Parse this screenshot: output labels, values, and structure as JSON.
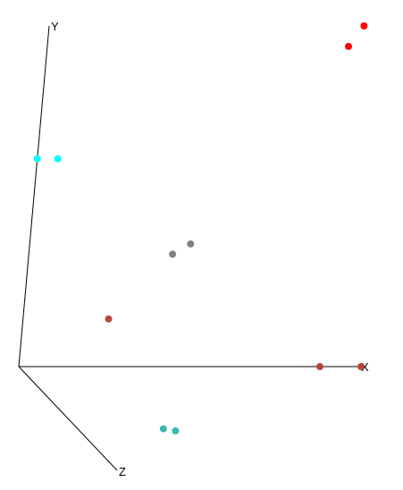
{
  "chart_data": {
    "type": "scatter",
    "projection": "3d",
    "axes": {
      "x": {
        "label": "X"
      },
      "y": {
        "label": "Y"
      },
      "z": {
        "label": "Z"
      }
    },
    "grid": false,
    "legend": "none",
    "points": [
      {
        "x": 0.92,
        "y": 1.0,
        "z": 0.0,
        "color": "#ff0000"
      },
      {
        "x": 0.88,
        "y": 0.94,
        "z": 0.0,
        "color": "#ff0000"
      },
      {
        "x": 0.0,
        "y": 0.61,
        "z": 0.0,
        "color": "#00ffff"
      },
      {
        "x": 0.06,
        "y": 0.61,
        "z": 0.0,
        "color": "#00ffff"
      },
      {
        "x": 0.47,
        "y": 0.36,
        "z": 0.0,
        "color": "#808080"
      },
      {
        "x": 0.42,
        "y": 0.33,
        "z": 0.0,
        "color": "#808080"
      },
      {
        "x": 0.25,
        "y": 0.14,
        "z": 0.0,
        "color": "#b5463c"
      },
      {
        "x": 0.88,
        "y": 0.0,
        "z": 0.0,
        "color": "#b5463c"
      },
      {
        "x": 1.0,
        "y": 0.0,
        "z": 0.0,
        "color": "#b5463c"
      },
      {
        "x": 0.25,
        "y": 0.0,
        "z": 0.6,
        "color": "#3cb8b2"
      },
      {
        "x": 0.28,
        "y": 0.0,
        "z": 0.62,
        "color": "#3cb8b2"
      }
    ]
  }
}
